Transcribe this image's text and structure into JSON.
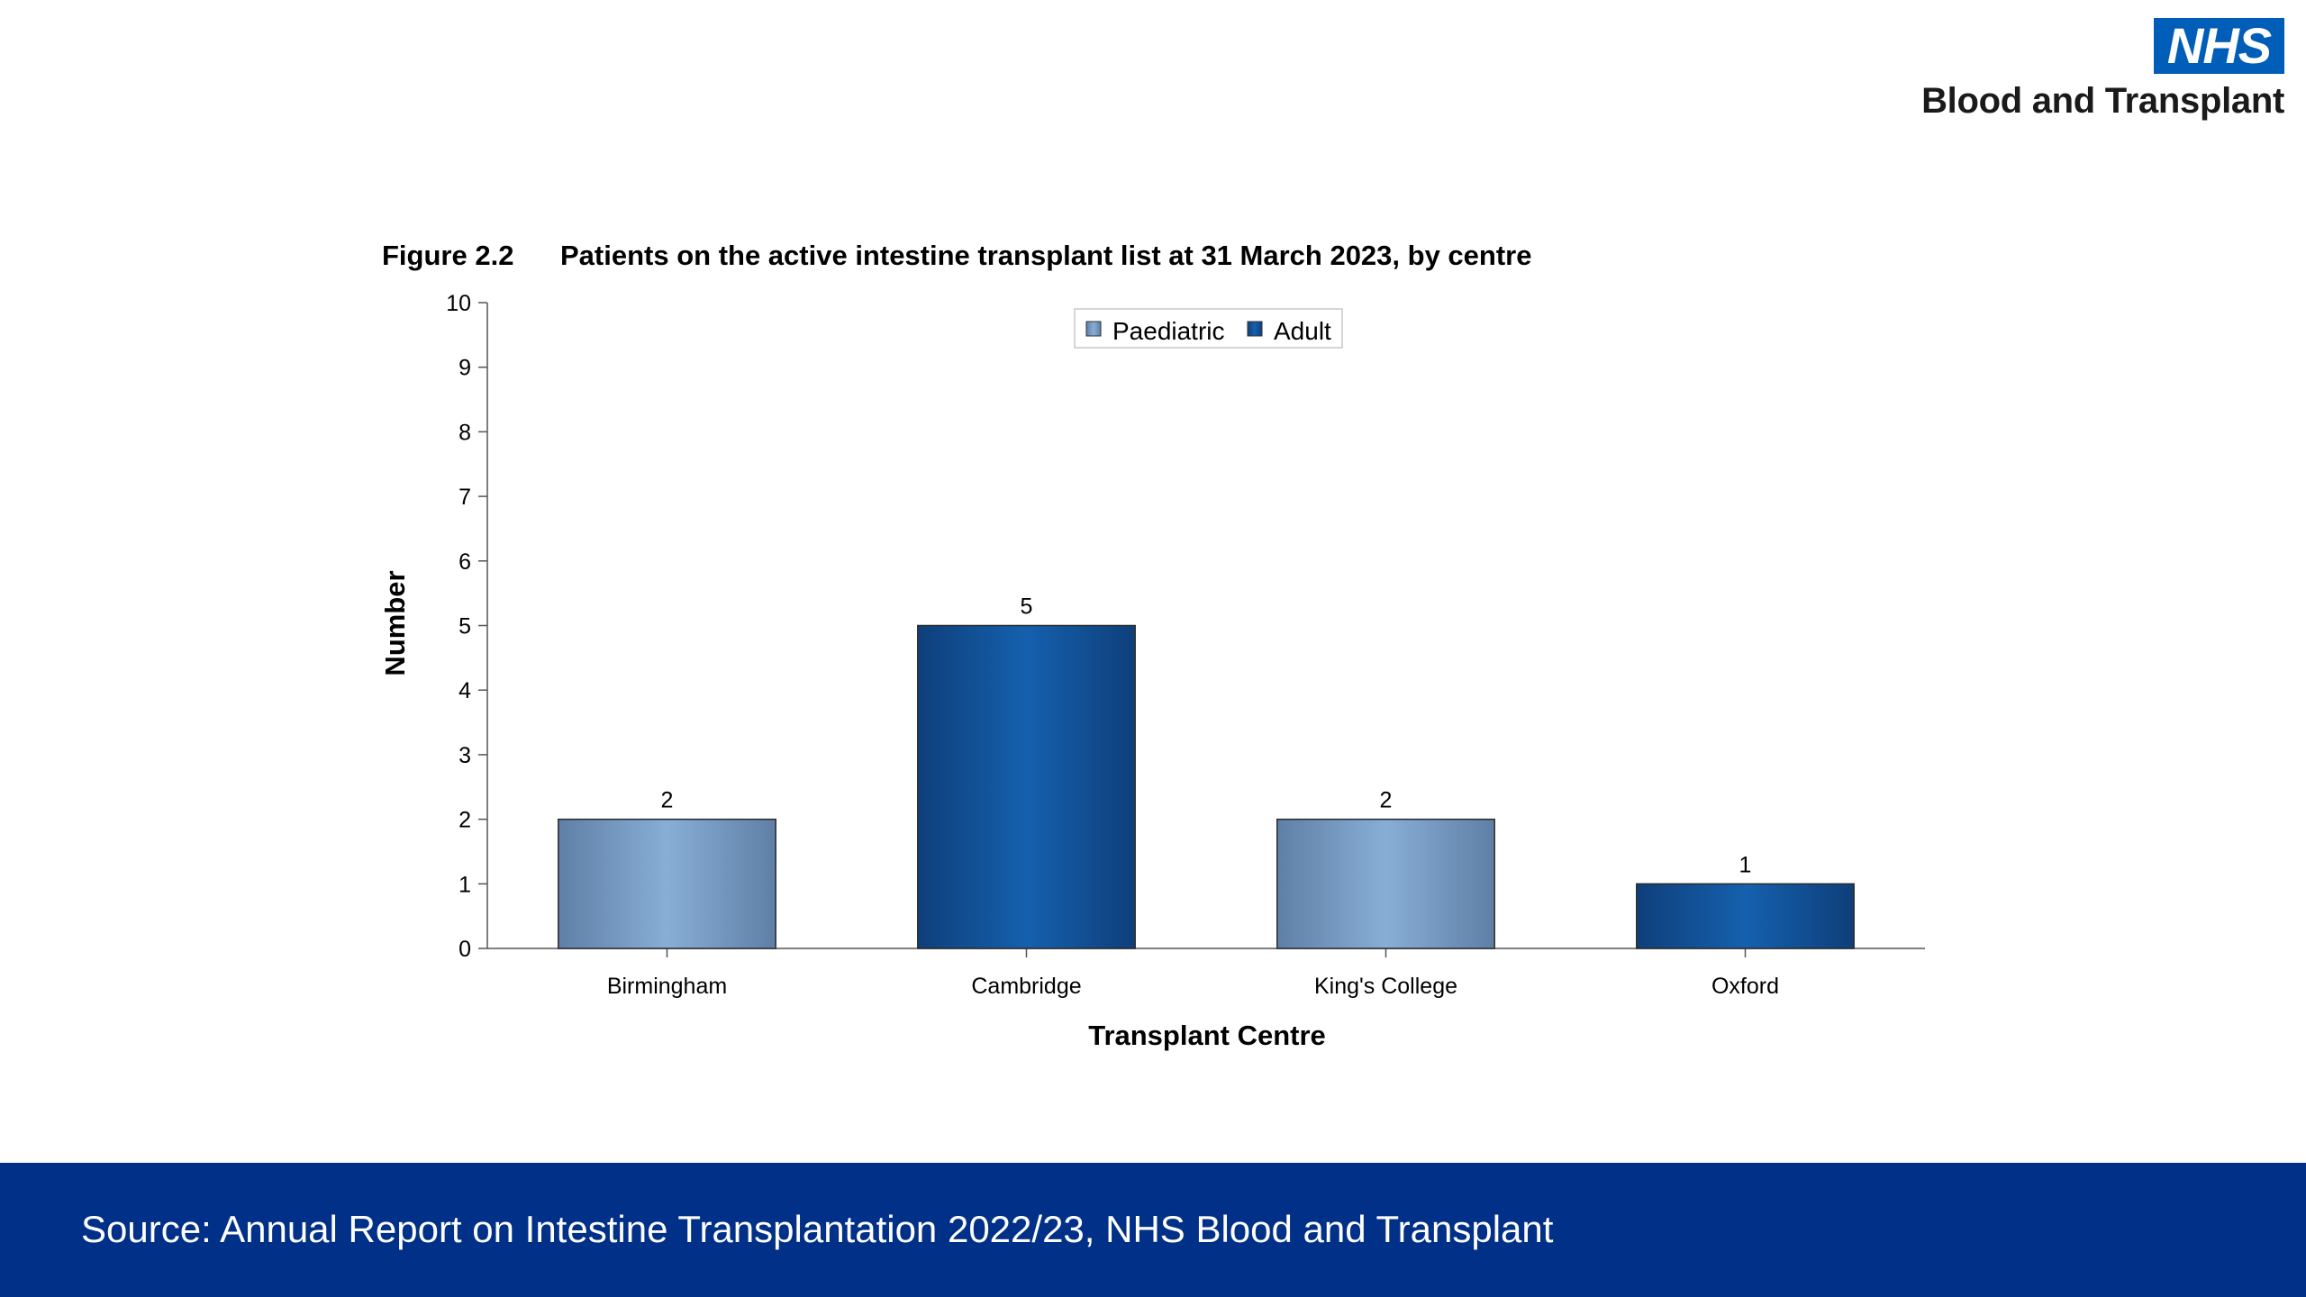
{
  "logo": {
    "nhs_text": "NHS",
    "brand_text": "Blood and Transplant"
  },
  "figure": {
    "number": "Figure 2.2",
    "title": "Patients on the active intestine transplant list at 31 March 2023, by centre"
  },
  "legend": {
    "items": [
      {
        "label": "Paediatric",
        "color": "#7FA6CF"
      },
      {
        "label": "Adult",
        "color": "#1456A0"
      }
    ],
    "placement": "top-center"
  },
  "chart_data": {
    "type": "bar",
    "categories": [
      "Birmingham",
      "Cambridge",
      "King's College",
      "Oxford"
    ],
    "values": [
      2,
      5,
      2,
      1
    ],
    "series_by_category": [
      "Paediatric",
      "Adult",
      "Paediatric",
      "Adult"
    ],
    "data_labels": [
      "2",
      "5",
      "2",
      "1"
    ],
    "xlabel": "Transplant Centre",
    "ylabel": "Number",
    "ylim": [
      0,
      10
    ],
    "yticks": [
      "0",
      "1",
      "2",
      "3",
      "4",
      "5",
      "6",
      "7",
      "8",
      "9",
      "10"
    ],
    "grid": false
  },
  "colors": {
    "paediatric": "#7FA6CF",
    "adult": "#1456A0",
    "footer_bg": "#003087",
    "nhs_blue": "#005EB8"
  },
  "footer": {
    "source_text": "Source: Annual Report on Intestine Transplantation 2022/23, NHS Blood and Transplant"
  }
}
